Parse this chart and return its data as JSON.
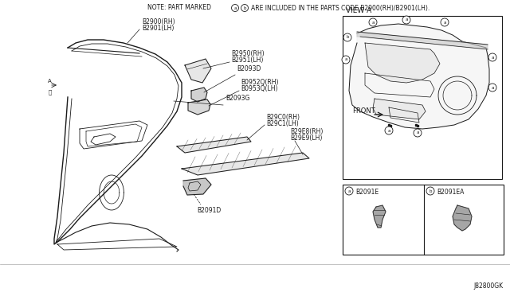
{
  "bg_color": "#ffffff",
  "line_color": "#1a1a1a",
  "text_color": "#1a1a1a",
  "note_text": "NOTE: PART MARKED",
  "note_text2": "ARE INCLUDED IN THE PARTS CODE B2900(RH)/B2901(LH).",
  "view_a_label": "VIEW A",
  "front_label": "FRONT",
  "diagram_id": "J82800GK",
  "fs_note": 5.5,
  "fs_label": 5.5,
  "fs_small": 5.0,
  "fs_viewlabel": 6.5
}
